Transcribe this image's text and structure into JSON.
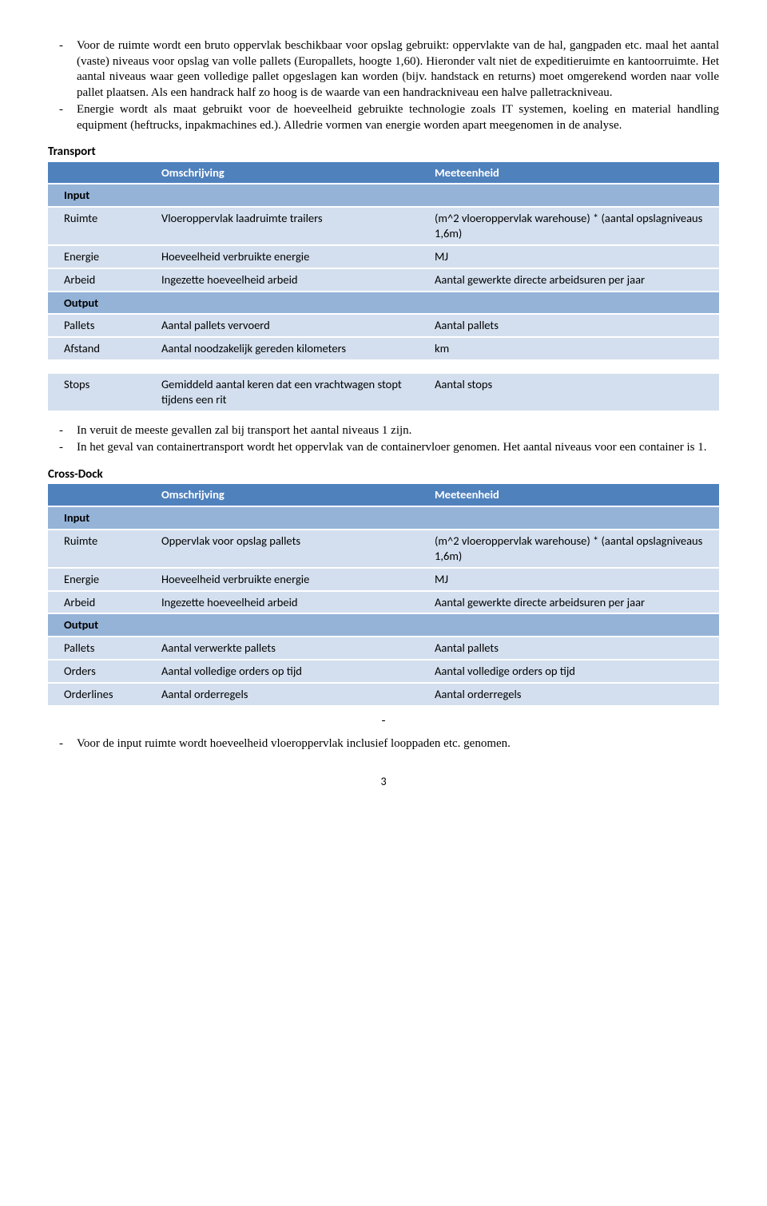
{
  "top_bullets": [
    "Voor de ruimte wordt een bruto oppervlak beschikbaar voor opslag gebruikt: oppervlakte van de hal, gangpaden etc. maal het aantal (vaste) niveaus voor opslag van volle pallets (Europallets, hoogte 1,60). Hieronder valt niet de expeditieruimte en kantoorruimte. Het aantal niveaus waar geen volledige pallet opgeslagen kan worden (bijv. handstack en returns) moet omgerekend worden naar volle pallet plaatsen. Als een handrack half zo hoog is de waarde van een handrackniveau een halve palletrackniveau.",
    "Energie wordt als maat gebruikt voor de hoeveelheid gebruikte technologie zoals IT systemen, koeling en material handling equipment (heftrucks, inpakmachines ed.). Alledrie vormen van energie worden apart meegenomen in de analyse."
  ],
  "transport": {
    "title": "Transport",
    "headers": {
      "c2": "Omschrijving",
      "c3": "Meeteenheid"
    },
    "input_label": "Input",
    "output_label": "Output",
    "input_rows": [
      {
        "c1": "Ruimte",
        "c2": "Vloeroppervlak laadruimte trailers",
        "c3": "(m^2 vloeroppervlak warehouse) * (aantal opslagniveaus 1,6m)"
      },
      {
        "c1": "Energie",
        "c2": "Hoeveelheid verbruikte energie",
        "c3": "MJ"
      },
      {
        "c1": "Arbeid",
        "c2": "Ingezette hoeveelheid arbeid",
        "c3": "Aantal gewerkte directe arbeidsuren per jaar"
      }
    ],
    "output_rows": [
      {
        "c1": "Pallets",
        "c2": "Aantal pallets vervoerd",
        "c3": "Aantal pallets"
      },
      {
        "c1": "Afstand",
        "c2": "Aantal noodzakelijk gereden kilometers",
        "c3": "km"
      }
    ],
    "extra_rows": [
      {
        "c1": "Stops",
        "c2": "Gemiddeld aantal keren dat een vrachtwagen stopt tijdens een rit",
        "c3": "Aantal stops"
      }
    ]
  },
  "mid_bullets": [
    "In veruit de meeste gevallen zal bij transport het aantal niveaus 1 zijn.",
    "In het geval van containertransport wordt het oppervlak van de containervloer genomen. Het aantal niveaus voor een container is 1."
  ],
  "crossdock": {
    "title": "Cross-Dock",
    "headers": {
      "c2": "Omschrijving",
      "c3": "Meeteenheid"
    },
    "input_label": "Input",
    "output_label": "Output",
    "input_rows": [
      {
        "c1": "Ruimte",
        "c2": "Oppervlak voor opslag pallets",
        "c3": "(m^2 vloeroppervlak warehouse) * (aantal opslagniveaus 1,6m)"
      },
      {
        "c1": "Energie",
        "c2": "Hoeveelheid verbruikte energie",
        "c3": "MJ"
      },
      {
        "c1": "Arbeid",
        "c2": "Ingezette hoeveelheid arbeid",
        "c3": "Aantal gewerkte directe arbeidsuren per jaar"
      }
    ],
    "output_rows": [
      {
        "c1": "Pallets",
        "c2": "Aantal verwerkte pallets",
        "c3": "Aantal pallets"
      },
      {
        "c1": "Orders",
        "c2": "Aantal volledige orders op tijd",
        "c3": "Aantal volledige orders op tijd"
      },
      {
        "c1": "Orderlines",
        "c2": "Aantal orderregels",
        "c3": "Aantal orderregels"
      }
    ]
  },
  "trailing_dash": "-",
  "bottom_bullets": [
    "Voor de input ruimte wordt hoeveelheid vloeroppervlak inclusief looppaden etc. genomen."
  ],
  "page_number": "3",
  "colors": {
    "header_bg": "#4f81bd",
    "sub_bg": "#95b3d7",
    "row_bg": "#d3dfee"
  }
}
